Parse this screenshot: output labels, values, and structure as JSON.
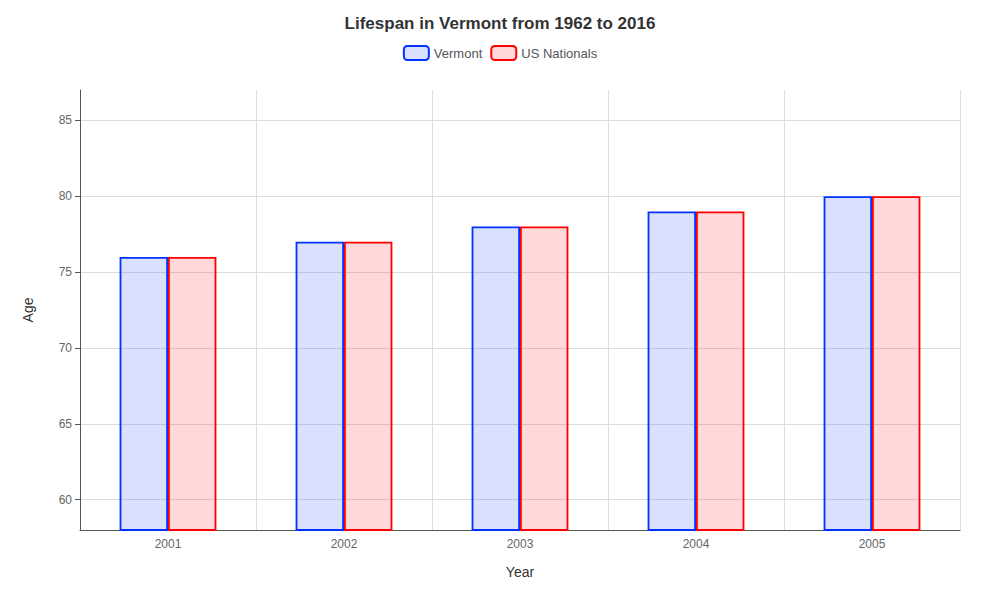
{
  "chart_data": {
    "type": "bar",
    "title": "Lifespan in Vermont from 1962 to 2016",
    "xlabel": "Year",
    "ylabel": "Age",
    "categories": [
      "2001",
      "2002",
      "2003",
      "2004",
      "2005"
    ],
    "series": [
      {
        "name": "Vermont",
        "color": "#0033ff",
        "values": [
          76,
          77,
          78,
          79,
          80
        ]
      },
      {
        "name": "US Nationals",
        "color": "#ff0000",
        "values": [
          76,
          77,
          78,
          79,
          80
        ]
      }
    ],
    "ylim": [
      58,
      87
    ],
    "yticks": [
      60,
      65,
      70,
      75,
      80,
      85
    ],
    "grid": true,
    "legend": "top"
  }
}
